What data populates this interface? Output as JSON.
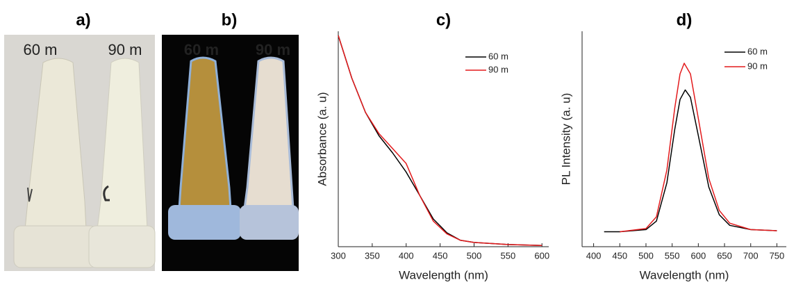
{
  "photos": [
    {
      "label": "a)",
      "samples": [
        "60 m",
        "90 m"
      ]
    },
    {
      "label": "b)",
      "samples": [
        "60 m",
        "90 m"
      ]
    }
  ],
  "chart_data": [
    {
      "type": "line",
      "title": "c)",
      "xlabel": "Wavelength (nm)",
      "ylabel": "Absorbance (a. u)",
      "xlim": [
        300,
        610
      ],
      "xticks": [
        300,
        350,
        400,
        450,
        500,
        550,
        600
      ],
      "ylim": [
        0,
        1.01
      ],
      "series": [
        {
          "name": "60 m",
          "color": "#000000",
          "x": [
            300,
            320,
            340,
            360,
            380,
            400,
            420,
            440,
            460,
            480,
            500,
            550,
            600
          ],
          "values": [
            0.99,
            0.79,
            0.63,
            0.52,
            0.44,
            0.35,
            0.24,
            0.13,
            0.065,
            0.03,
            0.02,
            0.01,
            0.006
          ]
        },
        {
          "name": "90 m",
          "color": "#e31a1c",
          "x": [
            300,
            320,
            340,
            360,
            380,
            400,
            420,
            440,
            460,
            480,
            500,
            550,
            600
          ],
          "values": [
            0.99,
            0.79,
            0.63,
            0.53,
            0.46,
            0.39,
            0.24,
            0.12,
            0.06,
            0.03,
            0.02,
            0.01,
            0.006
          ]
        }
      ]
    },
    {
      "type": "line",
      "title": "d)",
      "xlabel": "Wavelength (nm)",
      "ylabel": "PL Intensity (a. u)",
      "xlim": [
        378,
        768
      ],
      "xticks": [
        400,
        450,
        500,
        550,
        600,
        650,
        700,
        750
      ],
      "ylim": [
        0,
        1.01
      ],
      "series": [
        {
          "name": "60 m",
          "color": "#000000",
          "x": [
            420,
            450,
            500,
            520,
            540,
            555,
            565,
            575,
            585,
            600,
            620,
            640,
            660,
            700,
            750
          ],
          "values": [
            0.07,
            0.07,
            0.08,
            0.12,
            0.3,
            0.55,
            0.69,
            0.735,
            0.7,
            0.52,
            0.28,
            0.15,
            0.1,
            0.08,
            0.075
          ]
        },
        {
          "name": "90 m",
          "color": "#e31a1c",
          "x": [
            450,
            500,
            520,
            540,
            555,
            565,
            573,
            585,
            600,
            620,
            640,
            660,
            700,
            750
          ],
          "values": [
            0.07,
            0.085,
            0.14,
            0.36,
            0.65,
            0.81,
            0.86,
            0.81,
            0.6,
            0.32,
            0.17,
            0.11,
            0.08,
            0.075
          ]
        }
      ]
    }
  ]
}
